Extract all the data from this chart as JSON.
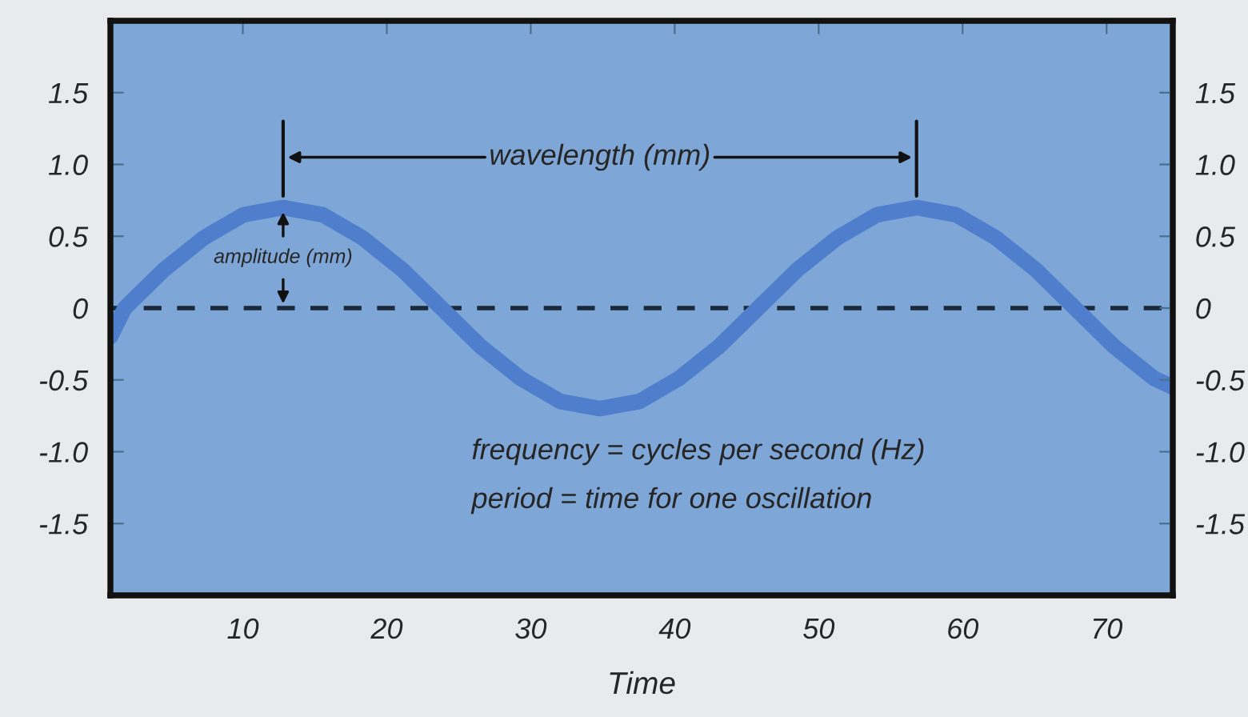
{
  "chart_data": {
    "type": "line",
    "xlabel": "Time",
    "x": [
      0.8,
      1.8,
      4.55,
      7.3,
      10.05,
      12.8,
      15.55,
      18.3,
      21.05,
      23.8,
      26.55,
      29.3,
      32.05,
      34.8,
      37.55,
      40.3,
      43.05,
      45.8,
      48.55,
      51.3,
      54.05,
      56.8,
      59.55,
      62.3,
      65.05,
      67.8,
      70.55,
      73.3,
      74.6
    ],
    "series": [
      {
        "color": "#4f7fcc",
        "values": [
          -0.2,
          0.0,
          0.27,
          0.49,
          0.65,
          0.7,
          0.65,
          0.49,
          0.27,
          0.0,
          -0.27,
          -0.49,
          -0.65,
          -0.7,
          -0.65,
          -0.49,
          -0.27,
          0.0,
          0.27,
          0.49,
          0.65,
          0.7,
          0.65,
          0.49,
          0.27,
          0.0,
          -0.27,
          -0.49,
          -0.55
        ]
      }
    ],
    "xlim": [
      0.8,
      74.6
    ],
    "xticks": [
      10,
      20,
      30,
      40,
      50,
      60,
      70
    ],
    "ylim": [
      -2.0,
      2.0
    ],
    "yticks": [
      {
        "value": -1.5,
        "label": "-1.5"
      },
      {
        "value": -1,
        "label": "-1.0"
      },
      {
        "value": -0.5,
        "label": "-0.5"
      },
      0,
      {
        "value": 0.5,
        "label": "0.5"
      },
      {
        "value": 1,
        "label": "1.0"
      },
      {
        "value": 1.5,
        "label": "1.5"
      }
    ],
    "y2lim": [
      -2.0,
      2.0
    ],
    "y2ticks": [
      {
        "value": -1.5,
        "label": "-1.5"
      },
      {
        "value": -1,
        "label": "-1.0"
      },
      {
        "value": -0.5,
        "label": "-0.5"
      },
      0,
      {
        "value": 0.5,
        "label": "0.5"
      },
      {
        "value": 1,
        "label": "1.0"
      },
      {
        "value": 1.5,
        "label": "1.5"
      }
    ],
    "ref_lines": [
      {
        "axis": "y",
        "value": 0,
        "color": "#1a2a3a",
        "line_style": "dashed"
      }
    ],
    "annotations": [
      "wavelength (mm)",
      "amplitude (mm)",
      "frequency = cycles per second (Hz)",
      "period = time for one oscillation"
    ],
    "grid": false,
    "legend": false,
    "marker": "none",
    "line_style": "solid"
  }
}
